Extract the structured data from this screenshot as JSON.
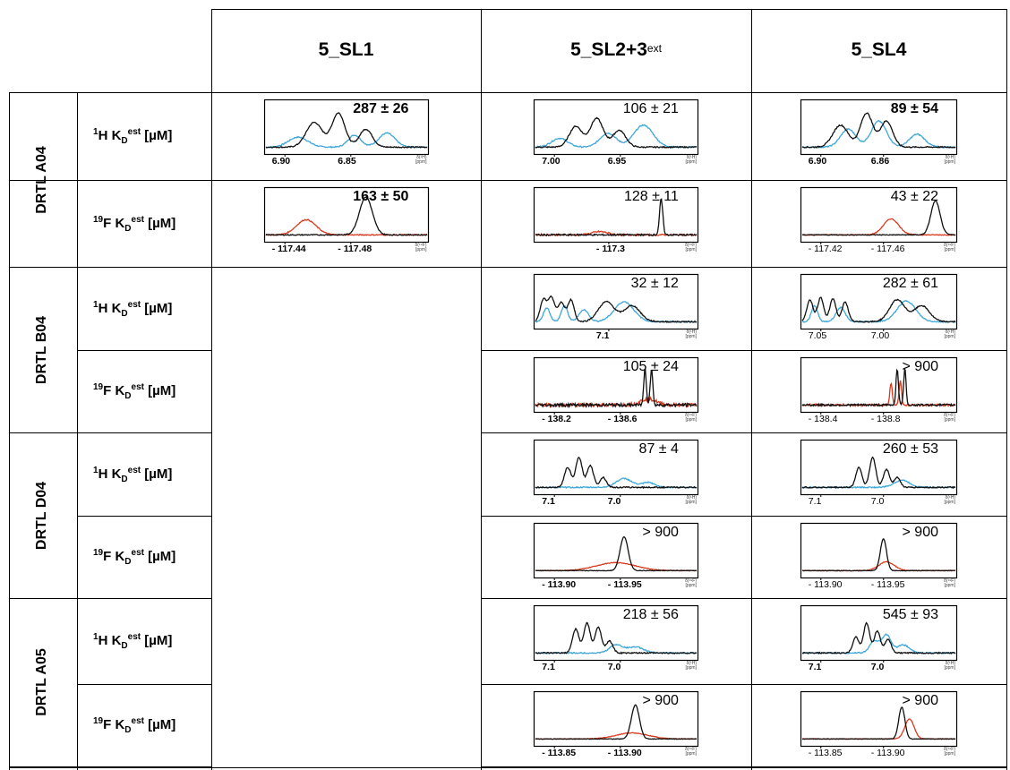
{
  "columns": [
    {
      "main": "5_SL1",
      "sup": ""
    },
    {
      "main": "5_SL2+3",
      "sup": "ext"
    },
    {
      "main": "5_SL4",
      "sup": ""
    }
  ],
  "colors": {
    "black_trace": "#111111",
    "blue_trace": "#3fa7d8",
    "red_trace": "#d93a1f",
    "grid": "#000000"
  },
  "compounds": [
    {
      "name": "DRTL A04",
      "rows": [
        {
          "nucleus": "1H",
          "label_pre": "1",
          "label_el": "H K",
          "label_sub": "D",
          "label_sup": "est",
          "label_unit": " [µM]",
          "panels": [
            {
              "kd": "287 ± 26",
              "kd_bold": true,
              "ticks": [
                "6.90",
                "6.85"
              ],
              "ticks_bold": true,
              "axis_unit": [
                "δ(¹H)",
                "[ppm]"
              ],
              "peaks_black": [
                [
                  0.3,
                  0.62,
                  0.05
                ],
                [
                  0.45,
                  0.85,
                  0.04
                ],
                [
                  0.62,
                  0.45,
                  0.04
                ]
              ],
              "peaks_color": [
                [
                  0.2,
                  0.25,
                  0.06
                ],
                [
                  0.55,
                  0.3,
                  0.04
                ],
                [
                  0.75,
                  0.35,
                  0.05
                ]
              ],
              "noise": 0.03
            },
            {
              "kd": "106 ± 21",
              "kd_bold": false,
              "ticks": [
                "7.00",
                "6.95"
              ],
              "ticks_bold": true,
              "axis_unit": [
                "δ(¹H)",
                "[ppm]"
              ],
              "peaks_black": [
                [
                  0.25,
                  0.52,
                  0.04
                ],
                [
                  0.38,
                  0.72,
                  0.04
                ],
                [
                  0.52,
                  0.42,
                  0.04
                ]
              ],
              "peaks_color": [
                [
                  0.15,
                  0.22,
                  0.05
                ],
                [
                  0.45,
                  0.35,
                  0.05
                ],
                [
                  0.67,
                  0.55,
                  0.06
                ]
              ],
              "noise": 0.03
            },
            {
              "kd": "89 ± 54",
              "kd_bold": true,
              "ticks": [
                "6.90",
                "6.86"
              ],
              "ticks_bold": true,
              "axis_unit": [
                "δ(¹H)",
                "[ppm]"
              ],
              "peaks_black": [
                [
                  0.25,
                  0.55,
                  0.05
                ],
                [
                  0.42,
                  0.85,
                  0.04
                ],
                [
                  0.55,
                  0.65,
                  0.04
                ]
              ],
              "peaks_color": [
                [
                  0.3,
                  0.45,
                  0.05
                ],
                [
                  0.5,
                  0.65,
                  0.05
                ],
                [
                  0.75,
                  0.32,
                  0.05
                ]
              ],
              "noise": 0.03
            }
          ]
        },
        {
          "nucleus": "19F",
          "label_pre": "19",
          "label_el": "F K",
          "label_sub": "D",
          "label_sup": "est",
          "label_unit": " [µM]",
          "panels": [
            {
              "kd": "163 ± 50",
              "kd_bold": true,
              "ticks": [
                "- 117.44",
                "- 117.48"
              ],
              "ticks_bold": true,
              "axis_unit": [
                "δ(¹⁹F)",
                "[ppm]"
              ],
              "peaks_black": [
                [
                  0.62,
                  0.95,
                  0.04
                ]
              ],
              "peaks_color": [
                [
                  0.25,
                  0.38,
                  0.06
                ]
              ],
              "noise": 0.025
            },
            {
              "kd": "128 ± 11",
              "kd_bold": false,
              "ticks": [
                "- 117.3"
              ],
              "ticks_bold": true,
              "axis_unit": [
                "δ(¹⁹F)",
                "[ppm]"
              ],
              "peaks_black": [
                [
                  0.78,
                  0.9,
                  0.01
                ]
              ],
              "peaks_color": [
                [
                  0.4,
                  0.08,
                  0.05
                ]
              ],
              "noise": 0.04
            },
            {
              "kd": "43 ± 22",
              "kd_bold": false,
              "ticks": [
                "- 117.42",
                "- 117.46"
              ],
              "ticks_bold": false,
              "axis_unit": [
                "δ(¹⁹F)",
                "[ppm]"
              ],
              "peaks_black": [
                [
                  0.87,
                  0.85,
                  0.03
                ]
              ],
              "peaks_color": [
                [
                  0.58,
                  0.4,
                  0.05
                ]
              ],
              "noise": 0.02
            }
          ]
        }
      ]
    },
    {
      "name": "DRTL B04",
      "rows": [
        {
          "nucleus": "1H",
          "label_pre": "1",
          "label_el": "H K",
          "label_sub": "D",
          "label_sup": "est",
          "label_unit": " [µM]",
          "panels": [
            null,
            {
              "kd": "32 ± 12",
              "kd_bold": false,
              "ticks": [
                "7.1"
              ],
              "ticks_bold": true,
              "axis_unit": [
                "δ(¹H)",
                "[ppm]"
              ],
              "peaks_black": [
                [
                  0.05,
                  0.55,
                  0.02
                ],
                [
                  0.1,
                  0.6,
                  0.02
                ],
                [
                  0.16,
                  0.48,
                  0.02
                ],
                [
                  0.22,
                  0.55,
                  0.02
                ],
                [
                  0.44,
                  0.5,
                  0.05
                ],
                [
                  0.6,
                  0.4,
                  0.05
                ]
              ],
              "peaks_color": [
                [
                  0.07,
                  0.35,
                  0.02
                ],
                [
                  0.18,
                  0.4,
                  0.02
                ],
                [
                  0.3,
                  0.3,
                  0.03
                ],
                [
                  0.55,
                  0.5,
                  0.06
                ]
              ],
              "noise": 0.03
            },
            {
              "kd": "282 ± 61",
              "kd_bold": false,
              "ticks": [
                "7.05",
                "7.00"
              ],
              "ticks_bold": false,
              "axis_unit": [
                "δ(¹H)",
                "[ppm]"
              ],
              "peaks_black": [
                [
                  0.05,
                  0.55,
                  0.02
                ],
                [
                  0.12,
                  0.6,
                  0.02
                ],
                [
                  0.2,
                  0.58,
                  0.02
                ],
                [
                  0.28,
                  0.5,
                  0.02
                ],
                [
                  0.62,
                  0.55,
                  0.05
                ],
                [
                  0.78,
                  0.4,
                  0.05
                ]
              ],
              "peaks_color": [
                [
                  0.08,
                  0.4,
                  0.02
                ],
                [
                  0.25,
                  0.35,
                  0.03
                ],
                [
                  0.68,
                  0.52,
                  0.06
                ]
              ],
              "noise": 0.03
            }
          ]
        },
        {
          "nucleus": "19F",
          "label_pre": "19",
          "label_el": "F K",
          "label_sub": "D",
          "label_sup": "est",
          "label_unit": " [µM]",
          "panels": [
            null,
            {
              "kd": "105 ± 24",
              "kd_bold": false,
              "ticks": [
                "- 138.2",
                "- 138.6"
              ],
              "ticks_bold": true,
              "axis_unit": [
                "δ(¹⁹F)",
                "[ppm]"
              ],
              "peaks_black": [
                [
                  0.68,
                  0.9,
                  0.008
                ],
                [
                  0.72,
                  0.9,
                  0.008
                ]
              ],
              "peaks_color": [
                [
                  0.7,
                  0.15,
                  0.05
                ]
              ],
              "noise": 0.08
            },
            {
              "kd": "> 900",
              "kd_bold": false,
              "ticks": [
                "- 138.4",
                "- 138.8"
              ],
              "ticks_bold": false,
              "axis_unit": [
                "δ(¹⁹F)",
                "[ppm]"
              ],
              "peaks_black": [
                [
                  0.62,
                  0.9,
                  0.008
                ],
                [
                  0.67,
                  0.9,
                  0.008
                ]
              ],
              "peaks_color": [
                [
                  0.58,
                  0.55,
                  0.008
                ],
                [
                  0.64,
                  0.6,
                  0.008
                ]
              ],
              "noise": 0.05
            }
          ]
        }
      ]
    },
    {
      "name": "DRTL D04",
      "rows": [
        {
          "nucleus": "1H",
          "label_pre": "1",
          "label_el": "H K",
          "label_sub": "D",
          "label_sup": "est",
          "label_unit": " [µM]",
          "panels": [
            null,
            {
              "kd": "87 ± 4",
              "kd_bold": false,
              "ticks": [
                "7.1",
                "7.0"
              ],
              "ticks_bold": true,
              "axis_unit": [
                "δ(¹H)",
                "[ppm]"
              ],
              "peaks_black": [
                [
                  0.2,
                  0.5,
                  0.02
                ],
                [
                  0.27,
                  0.75,
                  0.02
                ],
                [
                  0.34,
                  0.55,
                  0.02
                ],
                [
                  0.42,
                  0.25,
                  0.02
                ]
              ],
              "peaks_color": [
                [
                  0.55,
                  0.22,
                  0.05
                ],
                [
                  0.7,
                  0.12,
                  0.04
                ]
              ],
              "noise": 0.03
            },
            {
              "kd": "260 ± 53",
              "kd_bold": false,
              "ticks": [
                "7.1",
                "7.0"
              ],
              "ticks_bold": false,
              "axis_unit": [
                "δ(¹H)",
                "[ppm]"
              ],
              "peaks_black": [
                [
                  0.37,
                  0.5,
                  0.02
                ],
                [
                  0.46,
                  0.75,
                  0.02
                ],
                [
                  0.55,
                  0.45,
                  0.02
                ],
                [
                  0.62,
                  0.25,
                  0.02
                ]
              ],
              "peaks_color": [
                [
                  0.65,
                  0.18,
                  0.05
                ]
              ],
              "noise": 0.03
            }
          ]
        },
        {
          "nucleus": "19F",
          "label_pre": "19",
          "label_el": "F K",
          "label_sub": "D",
          "label_sup": "est",
          "label_unit": " [µM]",
          "panels": [
            null,
            {
              "kd": "> 900",
              "kd_bold": false,
              "ticks": [
                "- 113.90",
                "- 113.95"
              ],
              "ticks_bold": true,
              "axis_unit": [
                "δ(¹⁹F)",
                "[ppm]"
              ],
              "peaks_black": [
                [
                  0.55,
                  0.85,
                  0.025
                ]
              ],
              "peaks_color": [
                [
                  0.5,
                  0.2,
                  0.12
                ]
              ],
              "noise": 0.015
            },
            {
              "kd": "> 900",
              "kd_bold": false,
              "ticks": [
                "- 113.90",
                "- 113.95"
              ],
              "ticks_bold": false,
              "axis_unit": [
                "δ(¹⁹F)",
                "[ppm]"
              ],
              "peaks_black": [
                [
                  0.53,
                  0.8,
                  0.02
                ]
              ],
              "peaks_color": [
                [
                  0.55,
                  0.22,
                  0.05
                ]
              ],
              "noise": 0.015
            }
          ]
        }
      ]
    },
    {
      "name": "DRTL A05",
      "rows": [
        {
          "nucleus": "1H",
          "label_pre": "1",
          "label_el": "H K",
          "label_sub": "D",
          "label_sup": "est",
          "label_unit": " [µM]",
          "panels": [
            null,
            {
              "kd": "218 ± 56",
              "kd_bold": false,
              "ticks": [
                "7.1",
                "7.0"
              ],
              "ticks_bold": true,
              "axis_unit": [
                "δ(¹H)",
                "[ppm]"
              ],
              "peaks_black": [
                [
                  0.25,
                  0.6,
                  0.02
                ],
                [
                  0.32,
                  0.75,
                  0.02
                ],
                [
                  0.39,
                  0.65,
                  0.02
                ],
                [
                  0.46,
                  0.3,
                  0.02
                ]
              ],
              "peaks_color": [
                [
                  0.5,
                  0.2,
                  0.04
                ],
                [
                  0.62,
                  0.15,
                  0.05
                ]
              ],
              "noise": 0.03
            },
            {
              "kd": "545 ± 93",
              "kd_bold": false,
              "ticks": [
                "7.1",
                "7.0"
              ],
              "ticks_bold": true,
              "axis_unit": [
                "δ(¹H)",
                "[ppm]"
              ],
              "peaks_black": [
                [
                  0.35,
                  0.4,
                  0.02
                ],
                [
                  0.42,
                  0.75,
                  0.02
                ],
                [
                  0.49,
                  0.55,
                  0.02
                ],
                [
                  0.56,
                  0.35,
                  0.02
                ]
              ],
              "peaks_color": [
                [
                  0.47,
                  0.3,
                  0.03
                ],
                [
                  0.55,
                  0.45,
                  0.03
                ],
                [
                  0.66,
                  0.2,
                  0.04
                ]
              ],
              "noise": 0.03
            }
          ]
        },
        {
          "nucleus": "19F",
          "label_pre": "19",
          "label_el": "F K",
          "label_sub": "D",
          "label_sup": "est",
          "label_unit": " [µM]",
          "panels": [
            null,
            {
              "kd": "> 900",
              "kd_bold": false,
              "ticks": [
                "- 113.85",
                "- 113.90"
              ],
              "ticks_bold": true,
              "axis_unit": [
                "δ(¹⁹F)",
                "[ppm]"
              ],
              "peaks_black": [
                [
                  0.62,
                  0.85,
                  0.025
                ]
              ],
              "peaks_color": [
                [
                  0.6,
                  0.15,
                  0.1
                ]
              ],
              "noise": 0.015
            },
            {
              "kd": "> 900",
              "kd_bold": false,
              "ticks": [
                "- 113.85",
                "- 113.90"
              ],
              "ticks_bold": false,
              "axis_unit": [
                "δ(¹⁹F)",
                "[ppm]"
              ],
              "peaks_black": [
                [
                  0.65,
                  0.8,
                  0.02
                ]
              ],
              "peaks_color": [
                [
                  0.7,
                  0.5,
                  0.03
                ]
              ],
              "noise": 0.015
            }
          ]
        }
      ]
    }
  ]
}
